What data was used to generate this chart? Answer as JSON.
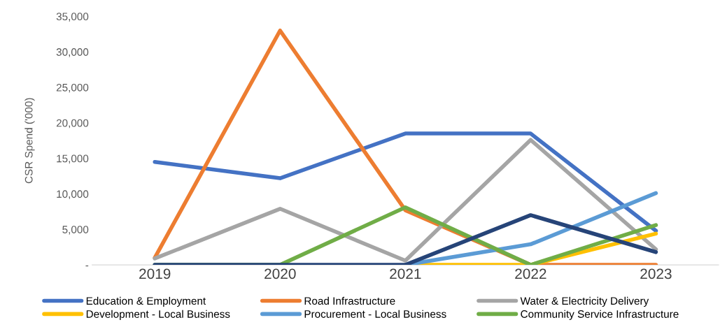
{
  "chart_data": {
    "type": "line",
    "ylabel": "CSR Spend ('000)",
    "categories": [
      "2019",
      "2020",
      "2021",
      "2022",
      "2023"
    ],
    "series": [
      {
        "name": "Education & Employment",
        "color": "#4472c4",
        "values": [
          14500,
          12200,
          18500,
          18500,
          4800
        ]
      },
      {
        "name": "Road Infrastructure",
        "color": "#ed7d31",
        "values": [
          1000,
          33000,
          7700,
          0,
          0
        ]
      },
      {
        "name": "Water & Electricity Delivery",
        "color": "#a5a5a5",
        "values": [
          900,
          7900,
          600,
          17600,
          2200
        ]
      },
      {
        "name": "Development - Local Business",
        "color": "#ffc000",
        "values": [
          null,
          null,
          0,
          0,
          4400
        ]
      },
      {
        "name": "Procurement - Local Business",
        "color": "#5b9bd5",
        "values": [
          null,
          null,
          0,
          2900,
          10100
        ]
      },
      {
        "name": "Community Service Infrastructure",
        "color": "#70ad47",
        "values": [
          0,
          0,
          8100,
          0,
          5600
        ]
      },
      {
        "color": "#264478",
        "values": [
          0,
          0,
          0,
          7000,
          1800
        ]
      }
    ],
    "ylim": [
      0,
      35000
    ],
    "yticks": [
      {
        "value": 0,
        "label": "-"
      },
      {
        "value": 5000,
        "label": "5,000"
      },
      {
        "value": 10000,
        "label": "10,000"
      },
      {
        "value": 15000,
        "label": "15,000"
      },
      {
        "value": 20000,
        "label": "20,000"
      },
      {
        "value": 25000,
        "label": "25,000"
      },
      {
        "value": 30000,
        "label": "30,000"
      },
      {
        "value": 35000,
        "label": "35,000"
      }
    ],
    "grid": false,
    "legend": "bottom",
    "marker": "none",
    "line_style": "solid"
  }
}
